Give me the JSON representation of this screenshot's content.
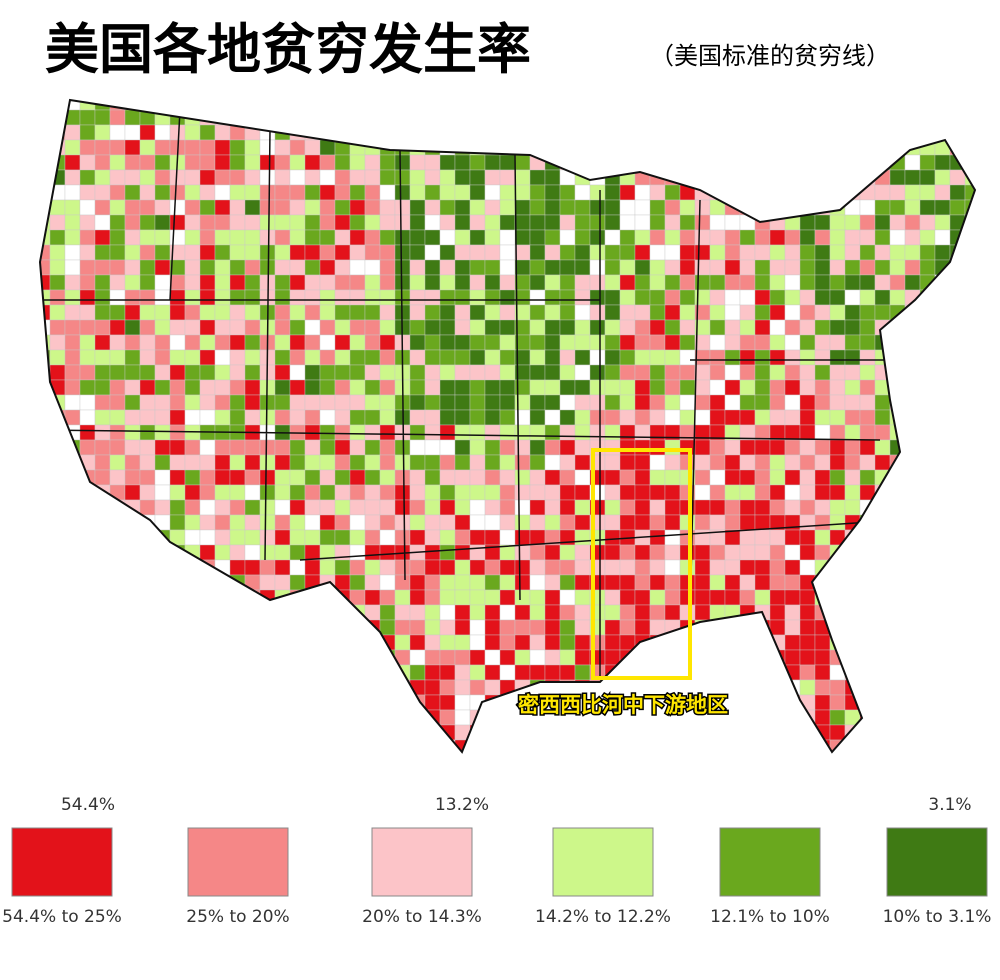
{
  "title": "美国各地贫穷发生率",
  "subtitle": "（美国标准的贫穷线）",
  "annotation": "密西西比河中下游地区",
  "legend": {
    "scale_labels": [
      "54.4%",
      "13.2%",
      "3.1%"
    ],
    "items": [
      {
        "label": "54.4% to 25%",
        "color": "#e3121a"
      },
      {
        "label": "25% to 20%",
        "color": "#f58787"
      },
      {
        "label": "20% to 14.3%",
        "color": "#fcc4c8"
      },
      {
        "label": "14.2% to 12.2%",
        "color": "#cdf78a"
      },
      {
        "label": "12.1% to 10%",
        "color": "#6aa81e"
      },
      {
        "label": "10% to 3.1%",
        "color": "#3f7a14"
      }
    ]
  }
}
